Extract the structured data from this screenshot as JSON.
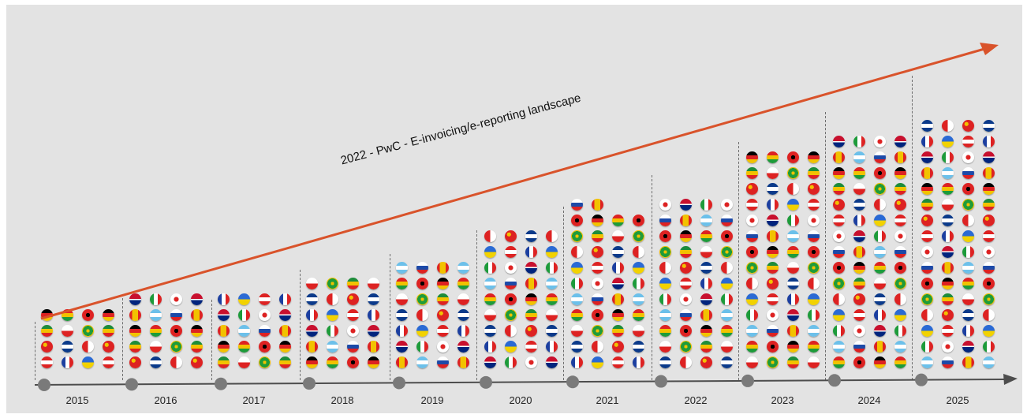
{
  "diagram": {
    "title": "2022 - PwC - E-invoicing/e-reporting landscape",
    "timeline": {
      "years": [
        "2015",
        "2016",
        "2017",
        "2018",
        "2019",
        "2020",
        "2021",
        "2022",
        "2023",
        "2024",
        "2025"
      ]
    },
    "columns": [
      {
        "year": "2015",
        "flags": 16
      },
      {
        "year": "2016",
        "flags": 20
      },
      {
        "year": "2017",
        "flags": 20
      },
      {
        "year": "2018",
        "flags": 24
      },
      {
        "year": "2019",
        "flags": 28
      },
      {
        "year": "2020",
        "flags": 36
      },
      {
        "year": "2021",
        "flags": 42
      },
      {
        "year": "2022",
        "flags": 44
      },
      {
        "year": "2023",
        "flags": 56
      },
      {
        "year": "2024",
        "flags": 60
      },
      {
        "year": "2025",
        "flags": 64
      }
    ],
    "colors": {
      "background": "#e3e3e3",
      "trend_arrow": "#d9532b",
      "axis": "#4d4d4d",
      "timeline_dot": "#7a7a7a"
    }
  }
}
